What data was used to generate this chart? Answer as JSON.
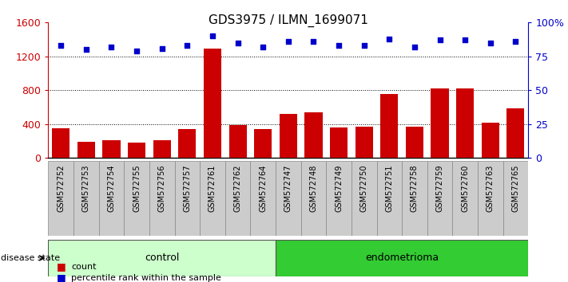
{
  "title": "GDS3975 / ILMN_1699071",
  "samples": [
    "GSM572752",
    "GSM572753",
    "GSM572754",
    "GSM572755",
    "GSM572756",
    "GSM572757",
    "GSM572761",
    "GSM572762",
    "GSM572764",
    "GSM572747",
    "GSM572748",
    "GSM572749",
    "GSM572750",
    "GSM572751",
    "GSM572758",
    "GSM572759",
    "GSM572760",
    "GSM572763",
    "GSM572765"
  ],
  "counts": [
    350,
    195,
    205,
    185,
    205,
    340,
    1290,
    390,
    340,
    520,
    540,
    360,
    370,
    760,
    370,
    820,
    820,
    420,
    590
  ],
  "percentiles": [
    83,
    80,
    82,
    79,
    81,
    83,
    90,
    85,
    82,
    86,
    86,
    83,
    83,
    88,
    82,
    87,
    87,
    85,
    86
  ],
  "control_count": 9,
  "endometrioma_count": 10,
  "ylim_left": [
    0,
    1600
  ],
  "ylim_right": [
    0,
    100
  ],
  "yticks_left": [
    0,
    400,
    800,
    1200,
    1600
  ],
  "yticks_right": [
    0,
    25,
    50,
    75,
    100
  ],
  "ytick_labels_right": [
    "0",
    "25",
    "50",
    "75",
    "100%"
  ],
  "bar_color": "#cc0000",
  "dot_color": "#0000cc",
  "control_bg": "#ccffcc",
  "endometrioma_bg": "#33cc33",
  "label_bg": "#cccccc",
  "grid_color": "#000000",
  "disease_state_label": "disease state",
  "control_label": "control",
  "endometrioma_label": "endometrioma",
  "legend_count_label": "count",
  "legend_pct_label": "percentile rank within the sample",
  "title_fontsize": 11,
  "axis_fontsize": 9,
  "tick_fontsize": 7,
  "label_fontsize": 9,
  "legend_fontsize": 8
}
